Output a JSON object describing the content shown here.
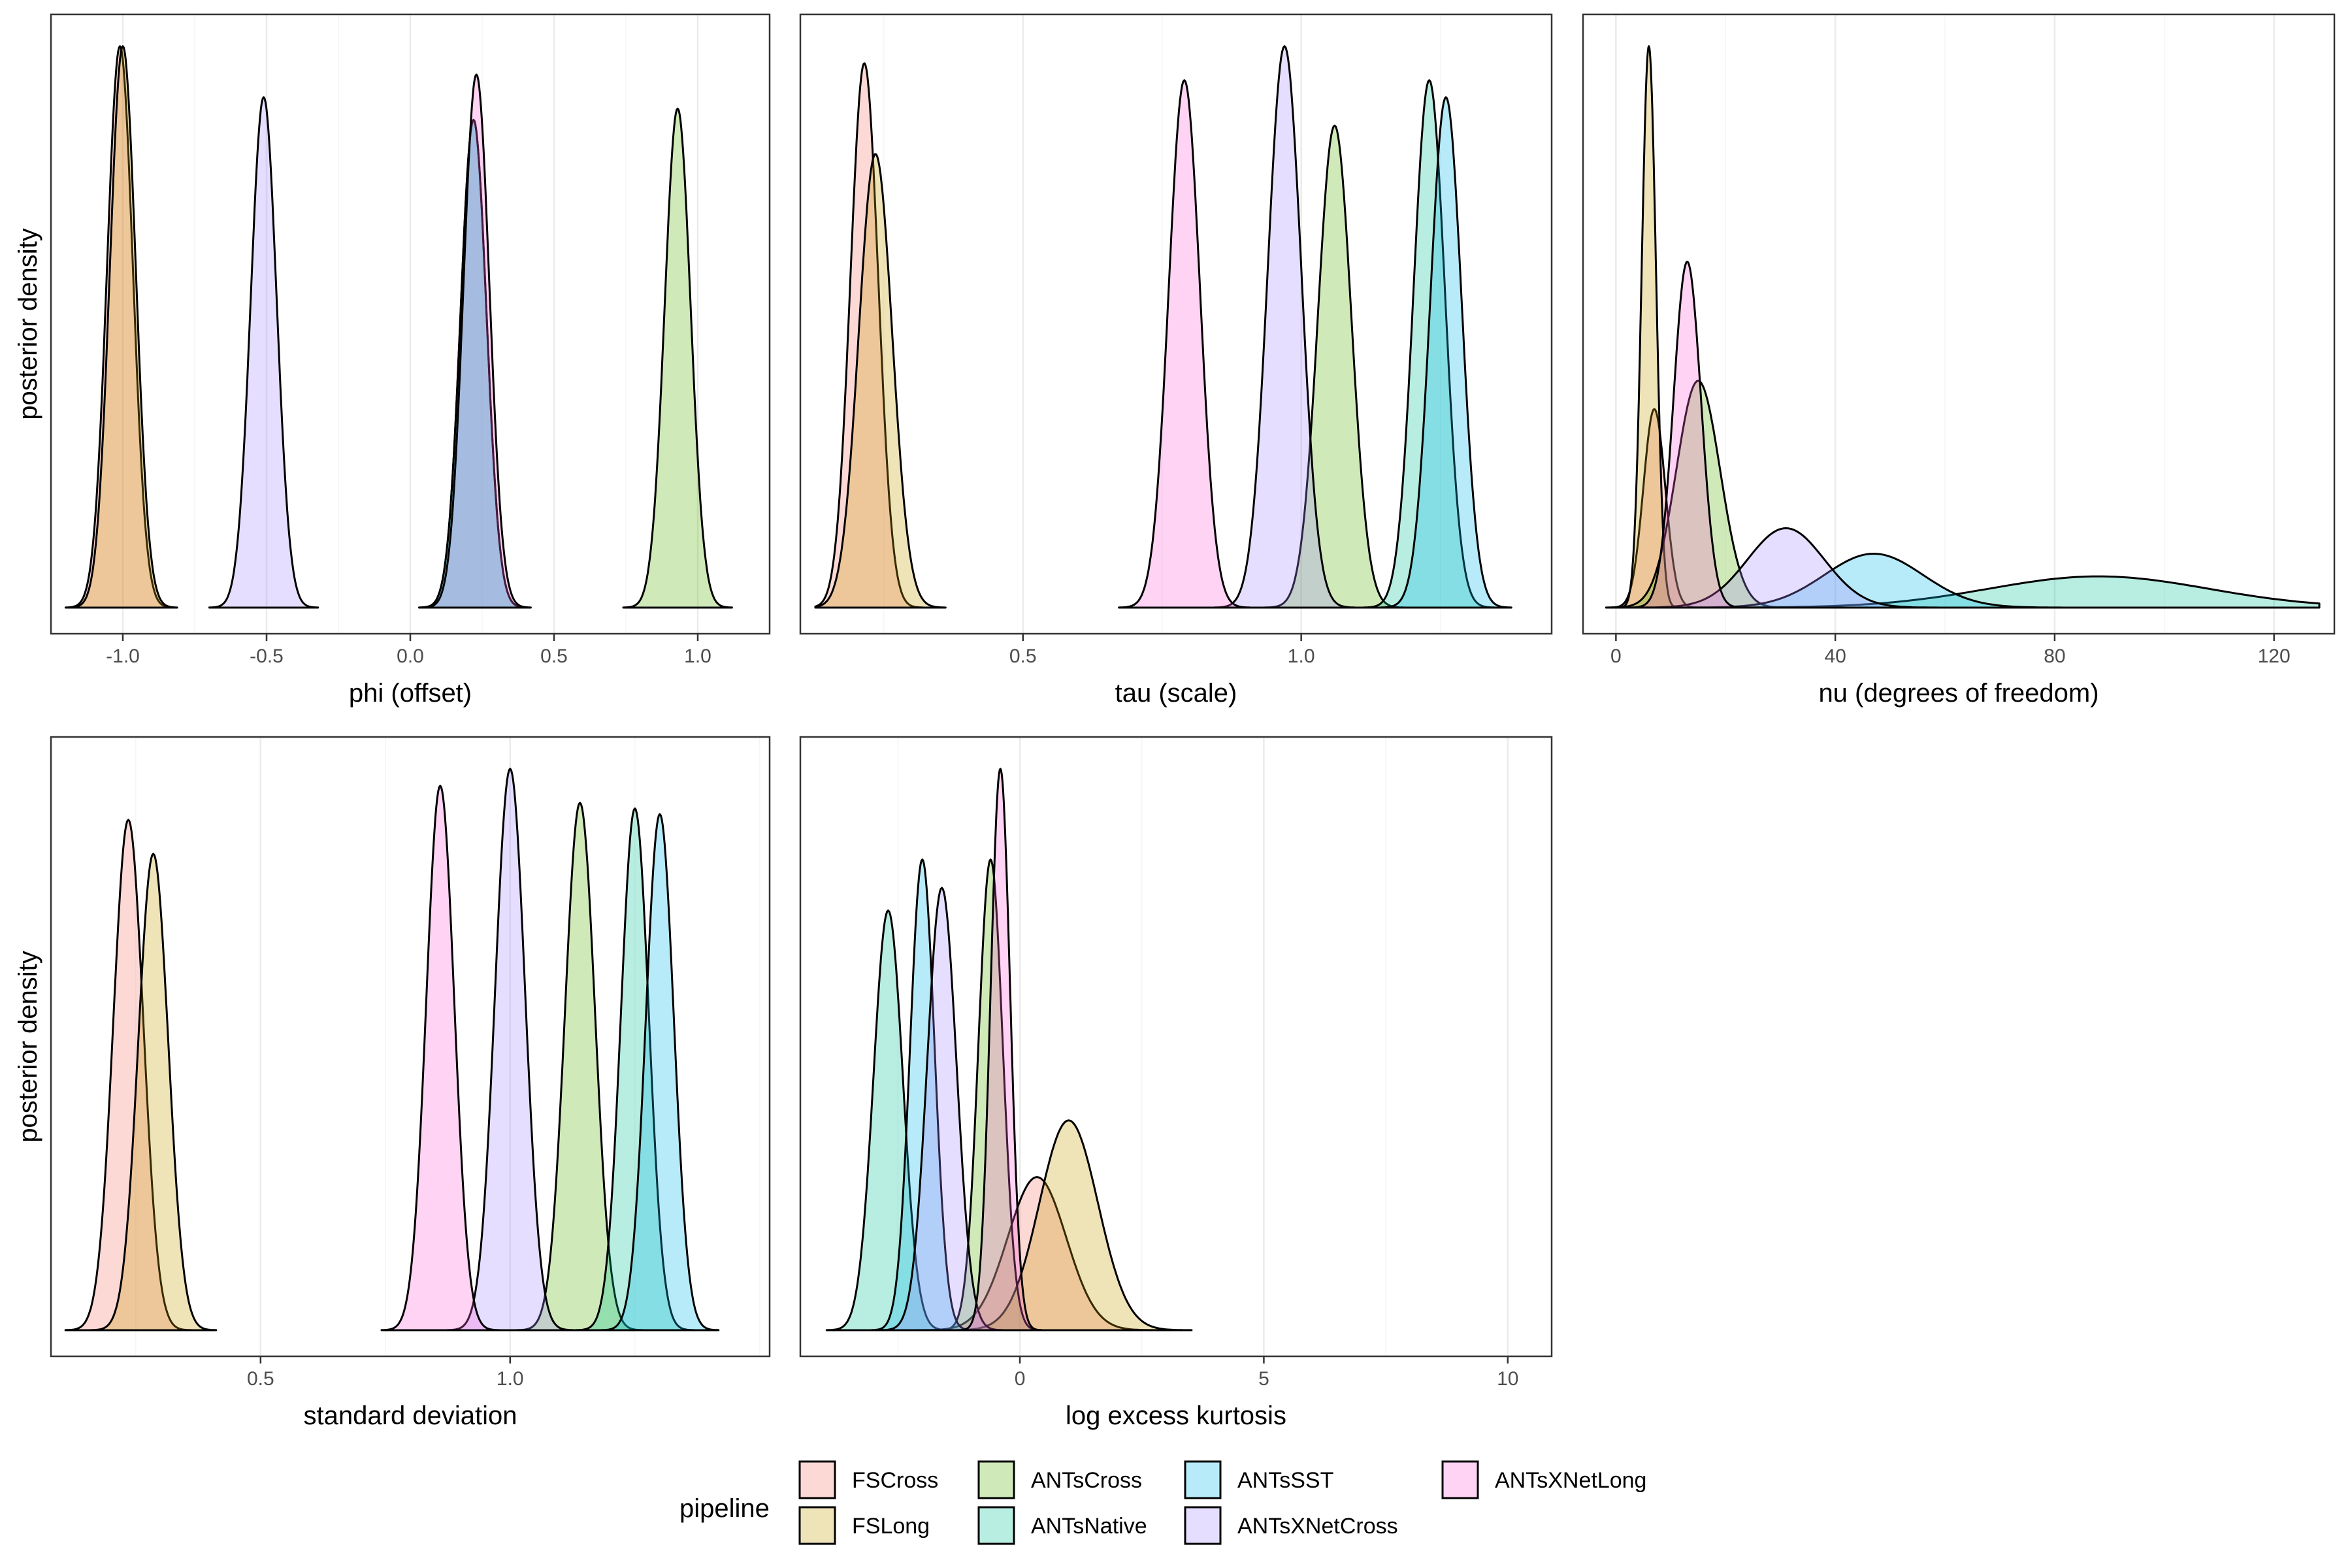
{
  "chart_data": [
    {
      "type": "area",
      "panel_id": "phi",
      "xlabel": "phi (offset)",
      "ylabel": "posterior density",
      "xlim": [
        -1.25,
        1.25
      ],
      "xticks": [
        -1.0,
        -0.5,
        0.0,
        0.5,
        1.0
      ],
      "xtick_labels": [
        "-1.0",
        "-0.5",
        "0.0",
        "0.5",
        "1.0"
      ],
      "grid": true,
      "series": [
        {
          "name": "FSCross",
          "mean": -1.01,
          "sd": 0.045,
          "rel_height": 0.99
        },
        {
          "name": "FSLong",
          "mean": -1.0,
          "sd": 0.045,
          "rel_height": 0.99
        },
        {
          "name": "ANTsCross",
          "mean": 0.93,
          "sd": 0.045,
          "rel_height": 0.88
        },
        {
          "name": "ANTsNative",
          "mean": 0.22,
          "sd": 0.045,
          "rel_height": 0.86
        },
        {
          "name": "ANTsSST",
          "mean": 0.22,
          "sd": 0.045,
          "rel_height": 0.86
        },
        {
          "name": "ANTsXNetCross",
          "mean": -0.51,
          "sd": 0.045,
          "rel_height": 0.9
        },
        {
          "name": "ANTsXNetLong",
          "mean": 0.23,
          "sd": 0.045,
          "rel_height": 0.94
        }
      ]
    },
    {
      "type": "area",
      "panel_id": "tau",
      "xlabel": "tau (scale)",
      "ylabel": "",
      "xlim": [
        0.1,
        1.45
      ],
      "xticks": [
        0.5,
        1.0
      ],
      "xtick_labels": [
        "0.5",
        "1.0"
      ],
      "grid": true,
      "series": [
        {
          "name": "FSCross",
          "mean": 0.215,
          "sd": 0.025,
          "rel_height": 0.96
        },
        {
          "name": "FSLong",
          "mean": 0.235,
          "sd": 0.03,
          "rel_height": 0.8
        },
        {
          "name": "ANTsCross",
          "mean": 1.06,
          "sd": 0.03,
          "rel_height": 0.85
        },
        {
          "name": "ANTsNative",
          "mean": 1.23,
          "sd": 0.028,
          "rel_height": 0.93
        },
        {
          "name": "ANTsSST",
          "mean": 1.26,
          "sd": 0.028,
          "rel_height": 0.9
        },
        {
          "name": "ANTsXNetCross",
          "mean": 0.97,
          "sd": 0.03,
          "rel_height": 0.99
        },
        {
          "name": "ANTsXNetLong",
          "mean": 0.79,
          "sd": 0.028,
          "rel_height": 0.93
        }
      ]
    },
    {
      "type": "area",
      "panel_id": "nu",
      "xlabel": "nu (degrees of freedom)",
      "ylabel": "",
      "xlim": [
        -6,
        131
      ],
      "xticks": [
        0,
        40,
        80,
        120
      ],
      "xtick_labels": [
        "0",
        "40",
        "80",
        "120"
      ],
      "grid": true,
      "series": [
        {
          "name": "FSCross",
          "mean": 7,
          "sd": 2.0,
          "rel_height": 0.35
        },
        {
          "name": "FSLong",
          "mean": 6,
          "sd": 1.3,
          "rel_height": 0.99
        },
        {
          "name": "ANTsCross",
          "mean": 15,
          "sd": 4.0,
          "rel_height": 0.4
        },
        {
          "name": "ANTsNative",
          "mean": 88,
          "sd": 20,
          "rel_height": 0.055
        },
        {
          "name": "ANTsSST",
          "mean": 47,
          "sd": 9,
          "rel_height": 0.095
        },
        {
          "name": "ANTsXNetCross",
          "mean": 31,
          "sd": 7,
          "rel_height": 0.14
        },
        {
          "name": "ANTsXNetLong",
          "mean": 13,
          "sd": 2.5,
          "rel_height": 0.61
        }
      ]
    },
    {
      "type": "area",
      "panel_id": "sd",
      "xlabel": "standard deviation",
      "ylabel": "posterior density",
      "xlim": [
        0.08,
        1.52
      ],
      "xticks": [
        0.5,
        1.0
      ],
      "xtick_labels": [
        "0.5",
        "1.0"
      ],
      "grid": true,
      "series": [
        {
          "name": "FSCross",
          "mean": 0.235,
          "sd": 0.03,
          "rel_height": 0.9
        },
        {
          "name": "FSLong",
          "mean": 0.285,
          "sd": 0.03,
          "rel_height": 0.84
        },
        {
          "name": "ANTsCross",
          "mean": 1.14,
          "sd": 0.03,
          "rel_height": 0.93
        },
        {
          "name": "ANTsNative",
          "mean": 1.25,
          "sd": 0.028,
          "rel_height": 0.92
        },
        {
          "name": "ANTsSST",
          "mean": 1.3,
          "sd": 0.028,
          "rel_height": 0.91
        },
        {
          "name": "ANTsXNetCross",
          "mean": 1.0,
          "sd": 0.03,
          "rel_height": 0.99
        },
        {
          "name": "ANTsXNetLong",
          "mean": 0.86,
          "sd": 0.028,
          "rel_height": 0.96
        }
      ]
    },
    {
      "type": "area",
      "panel_id": "kurtosis",
      "xlabel": "log excess kurtosis",
      "ylabel": "",
      "xlim": [
        -4.5,
        10.9
      ],
      "xticks": [
        0,
        5,
        10
      ],
      "xtick_labels": [
        "0",
        "5",
        "10"
      ],
      "grid": true,
      "series": [
        {
          "name": "FSCross",
          "mean": 0.35,
          "sd": 0.6,
          "rel_height": 0.27
        },
        {
          "name": "FSLong",
          "mean": 1.0,
          "sd": 0.6,
          "rel_height": 0.37
        },
        {
          "name": "ANTsCross",
          "mean": -0.6,
          "sd": 0.25,
          "rel_height": 0.83
        },
        {
          "name": "ANTsNative",
          "mean": -2.7,
          "sd": 0.3,
          "rel_height": 0.74
        },
        {
          "name": "ANTsSST",
          "mean": -2.0,
          "sd": 0.25,
          "rel_height": 0.83
        },
        {
          "name": "ANTsXNetCross",
          "mean": -1.6,
          "sd": 0.3,
          "rel_height": 0.78
        },
        {
          "name": "ANTsXNetLong",
          "mean": -0.4,
          "sd": 0.2,
          "rel_height": 0.99
        }
      ]
    }
  ],
  "legend": {
    "title": "pipeline",
    "placement": "bottom",
    "items": [
      {
        "name": "FSCross",
        "color": "#F8766D"
      },
      {
        "name": "FSLong",
        "color": "#C49A00"
      },
      {
        "name": "ANTsCross",
        "color": "#53B400"
      },
      {
        "name": "ANTsNative",
        "color": "#00C094"
      },
      {
        "name": "ANTsSST",
        "color": "#00B6EB"
      },
      {
        "name": "ANTsXNetCross",
        "color": "#A58AFF"
      },
      {
        "name": "ANTsXNetLong",
        "color": "#FB61D7"
      }
    ]
  }
}
